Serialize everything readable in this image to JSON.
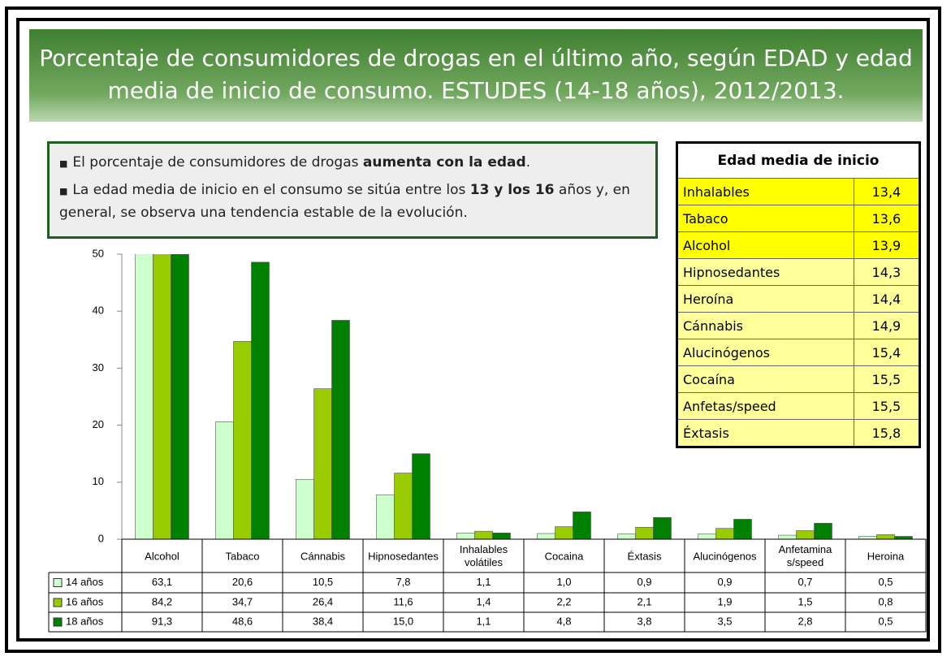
{
  "header": {
    "title": "Porcentaje de consumidores de drogas en el último año, según EDAD y edad media de inicio de consumo. ESTUDES (14-18 años), 2012/2013."
  },
  "notes": {
    "bullets": [
      [
        "El porcentaje de consumidores de drogas ",
        "aumenta con la edad",
        "."
      ],
      [
        "La edad media de inicio en el consumo se sitúa entre los ",
        "13 y los 16",
        " años y, en general, se observa una tendencia estable de la evolución."
      ]
    ]
  },
  "side_table": {
    "title": "Edad media de inicio",
    "rows": [
      [
        "Inhalables",
        "13,4"
      ],
      [
        "Tabaco",
        "13,6"
      ],
      [
        "Alcohol",
        "13,9"
      ],
      [
        "Hipnosedantes",
        "14,3"
      ],
      [
        "Heroína",
        "14,4"
      ],
      [
        "Cánnabis",
        "14,9"
      ],
      [
        "Alucinógenos",
        "15,4"
      ],
      [
        "Cocaína",
        "15,5"
      ],
      [
        "Anfetas/speed",
        "15,5"
      ],
      [
        "Éxtasis",
        "15,8"
      ]
    ]
  },
  "chart_data": {
    "type": "bar",
    "categories": [
      "Alcohol",
      "Tabaco",
      "Cánnabis",
      "Hipnosedantes",
      "Inhalables volátiles",
      "Cocaina",
      "Éxtasis",
      "Alucinógenos",
      "Anfetaminas/speed",
      "Heroina"
    ],
    "series": [
      {
        "name": "14 años",
        "color": "#ccffcc",
        "values": [
          63.1,
          20.6,
          10.5,
          7.8,
          1.1,
          1.0,
          0.9,
          0.9,
          0.7,
          0.5
        ],
        "value_labels": [
          "63,1",
          "20,6",
          "10,5",
          "7,8",
          "1,1",
          "1,0",
          "0,9",
          "0,9",
          "0,7",
          "0,5"
        ]
      },
      {
        "name": "16 años",
        "color": "#99cc00",
        "values": [
          84.2,
          34.7,
          26.4,
          11.6,
          1.4,
          2.2,
          2.1,
          1.9,
          1.5,
          0.8
        ],
        "value_labels": [
          "84,2",
          "34,7",
          "26,4",
          "11,6",
          "1,4",
          "2,2",
          "2,1",
          "1,9",
          "1,5",
          "0,8"
        ]
      },
      {
        "name": "18 años",
        "color": "#008000",
        "values": [
          91.3,
          48.6,
          38.4,
          15.0,
          1.1,
          4.8,
          3.8,
          3.5,
          2.8,
          0.5
        ],
        "value_labels": [
          "91,3",
          "48,6",
          "38,4",
          "15,0",
          "1,1",
          "4,8",
          "3,8",
          "3,5",
          "2,8",
          "0,5"
        ]
      }
    ],
    "ylim": [
      0,
      50
    ],
    "yticks": [
      0,
      10,
      20,
      30,
      40,
      50
    ]
  }
}
